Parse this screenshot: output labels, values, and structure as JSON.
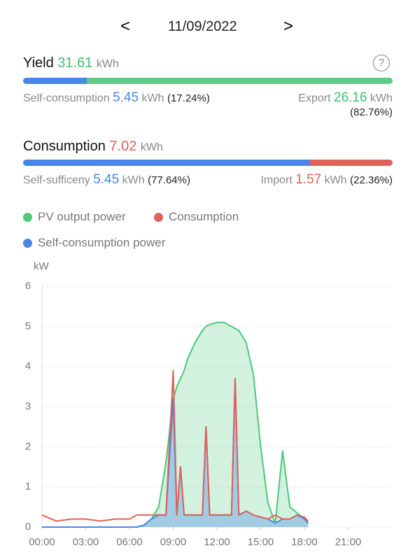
{
  "header": {
    "prev": "<",
    "date": "11/09/2022",
    "next": ">"
  },
  "yield": {
    "title": "Yield",
    "value": 31.61,
    "unit": "kWh",
    "help": "?",
    "self_consumption": {
      "label": "Self-consumption",
      "value": 5.45,
      "unit": "kWh",
      "percent": "(17.24%)"
    },
    "export": {
      "label": "Export",
      "value": 26.16,
      "unit": "kWh",
      "percent": "(82.76%)"
    }
  },
  "consumption": {
    "title": "Consumption",
    "value": 7.02,
    "unit": "kWh",
    "self_sufficiency": {
      "label": "Self-sufficeny",
      "value": 5.45,
      "unit": "kWh",
      "percent": "(77.64%)"
    },
    "import": {
      "label": "Import",
      "value": 1.57,
      "unit": "kWh",
      "percent": "(22.36%)"
    }
  },
  "chart_data": {
    "type": "line",
    "y_label": "kW",
    "x": [
      0,
      1,
      2,
      3,
      4,
      5,
      6,
      6.5,
      7,
      7.5,
      8,
      8.5,
      9,
      9.25,
      9.5,
      9.75,
      10,
      10.5,
      11,
      11.25,
      11.5,
      12,
      12.5,
      13,
      13.25,
      13.5,
      14,
      14.5,
      15,
      15.5,
      16,
      16.5,
      17,
      17.5,
      18,
      18.25
    ],
    "xlim": [
      0,
      24
    ],
    "xticks": [
      {
        "value": 0,
        "label": "00:00"
      },
      {
        "value": 3,
        "label": "03:00"
      },
      {
        "value": 6,
        "label": "06:00"
      },
      {
        "value": 9,
        "label": "09:00"
      },
      {
        "value": 12,
        "label": "12:00"
      },
      {
        "value": 15,
        "label": "15:00"
      },
      {
        "value": 18,
        "label": "18:00"
      },
      {
        "value": 21,
        "label": "21:00"
      }
    ],
    "ylim": [
      0,
      6
    ],
    "yticks": [
      0,
      1,
      2,
      3,
      4,
      5,
      6
    ],
    "grid": true,
    "series": [
      {
        "name": "PV output power",
        "color": "#4cc97a",
        "fill": true,
        "values": [
          0,
          0,
          0,
          0,
          0,
          0,
          0,
          0,
          0.05,
          0.2,
          0.5,
          1.6,
          3.2,
          3.5,
          3.7,
          3.9,
          4.2,
          4.6,
          4.9,
          5.0,
          5.05,
          5.1,
          5.1,
          5.0,
          4.95,
          4.9,
          4.6,
          3.8,
          2.0,
          0.6,
          0.1,
          1.9,
          0.5,
          0.35,
          0.2,
          0.1
        ]
      },
      {
        "name": "Consumption",
        "color": "#e0605a",
        "fill": false,
        "values": [
          0.3,
          0.15,
          0.2,
          0.2,
          0.15,
          0.2,
          0.2,
          0.3,
          0.3,
          0.3,
          0.3,
          0.3,
          3.9,
          0.3,
          1.5,
          0.3,
          0.3,
          0.3,
          0.3,
          2.5,
          0.3,
          0.3,
          0.3,
          0.3,
          3.7,
          0.3,
          0.4,
          0.3,
          0.25,
          0.2,
          0.3,
          0.2,
          0.2,
          0.3,
          0.25,
          0.15
        ]
      },
      {
        "name": "Self-consumption power",
        "color": "#4a86e8",
        "fill": true,
        "values": [
          0,
          0,
          0,
          0,
          0,
          0,
          0,
          0,
          0.05,
          0.2,
          0.3,
          0.3,
          3.2,
          0.3,
          1.5,
          0.3,
          0.3,
          0.3,
          0.3,
          2.5,
          0.3,
          0.3,
          0.3,
          0.3,
          3.7,
          0.3,
          0.4,
          0.3,
          0.25,
          0.2,
          0.1,
          0.2,
          0.2,
          0.3,
          0.2,
          0.1
        ]
      }
    ]
  }
}
